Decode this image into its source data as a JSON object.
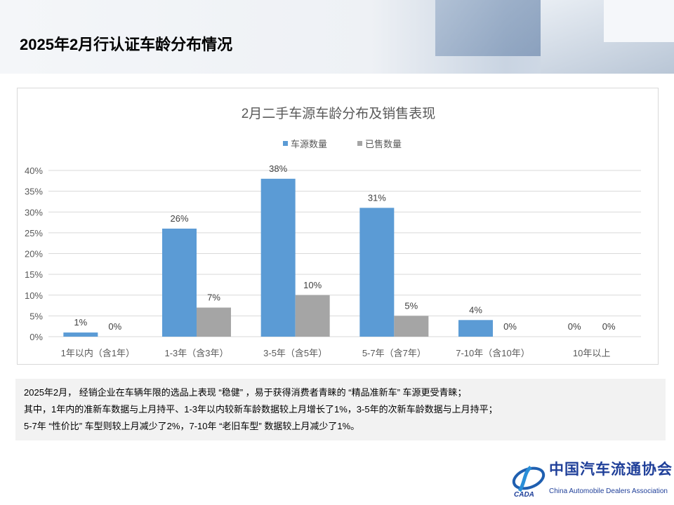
{
  "page": {
    "title": "2025年2月行认证车龄分布情况"
  },
  "note": {
    "lines": [
      "2025年2月， 经销企业在车辆年限的选品上表现 “稳健” ，易于获得消费者青睐的 “精品准新车” 车源更受青睐；",
      "其中，1年内的准新车数据与上月持平、1-3年以内较新车龄数据较上月增长了1%，3-5年的次新车龄数据与上月持平；",
      "5-7年 “性价比” 车型则较上月减少了2%，7-10年 “老旧车型” 数据较上月减少了1%。"
    ]
  },
  "logo": {
    "cn": "中国汽车流通协会",
    "en": "China Automobile Dealers Association",
    "mark": "CADA"
  },
  "chart_data": {
    "type": "bar",
    "title": "2月二手车源车龄分布及销售表现",
    "categories": [
      "1年以内（含1年）",
      "1-3年（含3年）",
      "3-5年（含5年）",
      "5-7年（含7年）",
      "7-10年（含10年）",
      "10年以上"
    ],
    "series": [
      {
        "name": "车源数量",
        "values": [
          1,
          26,
          38,
          31,
          4,
          0
        ],
        "labels": [
          "1%",
          "26%",
          "38%",
          "31%",
          "4%",
          "0%"
        ],
        "color": "#5b9bd5"
      },
      {
        "name": "已售数量",
        "values": [
          0,
          7,
          10,
          5,
          0,
          0
        ],
        "labels": [
          "0%",
          "7%",
          "10%",
          "5%",
          "0%",
          "0%"
        ],
        "color": "#a5a5a5"
      }
    ],
    "ylim": [
      0,
      40
    ],
    "yticks": [
      "0%",
      "5%",
      "10%",
      "15%",
      "20%",
      "25%",
      "30%",
      "35%",
      "40%"
    ],
    "grid": true,
    "legend": "top"
  }
}
